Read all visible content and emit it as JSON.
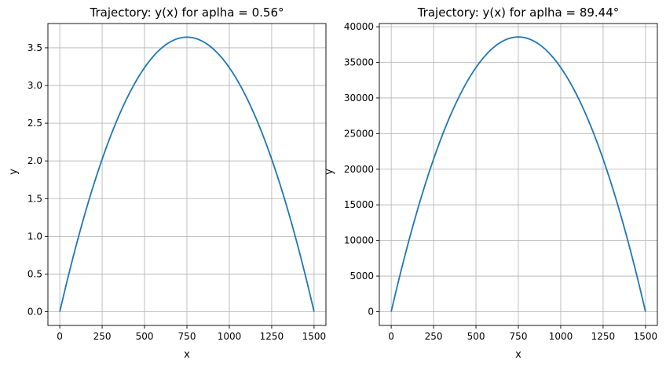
{
  "chart_data": [
    {
      "type": "line",
      "title": "Trajectory: y(x) for aplha = 0.56°",
      "xlabel": "x",
      "ylabel": "y",
      "xlim": [
        -70,
        1570
      ],
      "ylim": [
        -0.182,
        3.822
      ],
      "xticks": [
        0,
        250,
        500,
        750,
        1000,
        1250,
        1500
      ],
      "xtick_labels": [
        "0",
        "250",
        "500",
        "750",
        "1000",
        "1250",
        "1500"
      ],
      "yticks": [
        0,
        0.5,
        1,
        1.5,
        2,
        2.5,
        3,
        3.5
      ],
      "ytick_labels": [
        "0.0",
        "0.5",
        "1.0",
        "1.5",
        "2.0",
        "2.5",
        "3.0",
        "3.5"
      ],
      "grid": true,
      "series": [
        {
          "color": "#1f77b4",
          "x": [
            0,
            125,
            250,
            375,
            500,
            625,
            750,
            875,
            1000,
            1125,
            1250,
            1375,
            1500
          ],
          "y": [
            0,
            1.113,
            2.023,
            2.731,
            3.237,
            3.54,
            3.641,
            3.54,
            3.237,
            2.731,
            2.023,
            1.113,
            0
          ]
        }
      ]
    },
    {
      "type": "line",
      "title": "Trajectory: y(x) for aplha = 89.44°",
      "xlabel": "x",
      "ylabel": "y",
      "xlim": [
        -70,
        1570
      ],
      "ylim": [
        -1930,
        40450
      ],
      "xticks": [
        0,
        250,
        500,
        750,
        1000,
        1250,
        1500
      ],
      "xtick_labels": [
        "0",
        "250",
        "500",
        "750",
        "1000",
        "1250",
        "1500"
      ],
      "yticks": [
        0,
        5000,
        10000,
        15000,
        20000,
        25000,
        30000,
        35000,
        40000
      ],
      "ytick_labels": [
        "0",
        "5000",
        "10000",
        "15000",
        "20000",
        "25000",
        "30000",
        "35000",
        "40000"
      ],
      "grid": true,
      "series": [
        {
          "color": "#1f77b4",
          "x": [
            0,
            125,
            250,
            375,
            500,
            625,
            750,
            875,
            1000,
            1125,
            1250,
            1375,
            1500
          ],
          "y": [
            0,
            11780,
            21420,
            28920,
            34270,
            37490,
            38560,
            37490,
            34270,
            28920,
            21420,
            11780,
            0
          ]
        }
      ]
    }
  ]
}
